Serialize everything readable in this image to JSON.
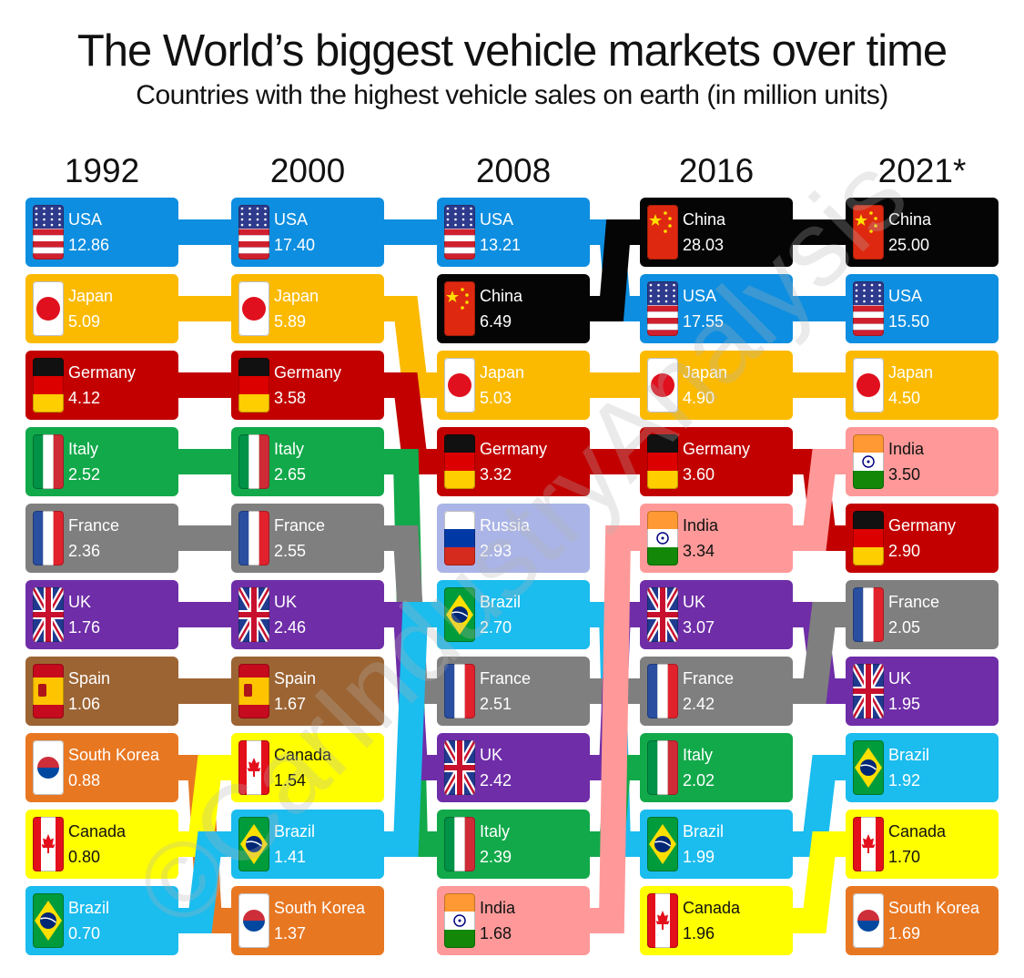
{
  "title": "The World’s biggest vehicle markets over time",
  "subtitle": "Countries with the highest vehicle sales on earth (in million units)",
  "watermark": "©CarIndustryAnalysis",
  "colors": {
    "USA": "#0d8ee0",
    "China": "#050505",
    "Japan": "#fbba00",
    "Germany": "#c20000",
    "Italy": "#12a94a",
    "France": "#7f7f7f",
    "UK": "#6f2da8",
    "Spain": "#9c6433",
    "South Korea": "#e87722",
    "Canada": "#ffff00",
    "Brazil": "#1bbcee",
    "India": "#ff9999",
    "Russia": "#aab4e6"
  },
  "chart_data": {
    "type": "bump",
    "title": "The World’s biggest vehicle markets over time",
    "subtitle": "Countries with the highest vehicle sales on earth (in million units)",
    "years": [
      "1992",
      "2000",
      "2008",
      "2016",
      "2021*"
    ],
    "rankings": [
      [
        {
          "country": "USA",
          "value": "12.86"
        },
        {
          "country": "Japan",
          "value": "5.09"
        },
        {
          "country": "Germany",
          "value": "4.12"
        },
        {
          "country": "Italy",
          "value": "2.52"
        },
        {
          "country": "France",
          "value": "2.36"
        },
        {
          "country": "UK",
          "value": "1.76"
        },
        {
          "country": "Spain",
          "value": "1.06"
        },
        {
          "country": "South Korea",
          "value": "0.88"
        },
        {
          "country": "Canada",
          "value": "0.80"
        },
        {
          "country": "Brazil",
          "value": "0.70"
        }
      ],
      [
        {
          "country": "USA",
          "value": "17.40"
        },
        {
          "country": "Japan",
          "value": "5.89"
        },
        {
          "country": "Germany",
          "value": "3.58"
        },
        {
          "country": "Italy",
          "value": "2.65"
        },
        {
          "country": "France",
          "value": "2.55"
        },
        {
          "country": "UK",
          "value": "2.46"
        },
        {
          "country": "Spain",
          "value": "1.67"
        },
        {
          "country": "Canada",
          "value": "1.54"
        },
        {
          "country": "Brazil",
          "value": "1.41"
        },
        {
          "country": "South Korea",
          "value": "1.37"
        }
      ],
      [
        {
          "country": "USA",
          "value": "13.21"
        },
        {
          "country": "China",
          "value": "6.49"
        },
        {
          "country": "Japan",
          "value": "5.03"
        },
        {
          "country": "Germany",
          "value": "3.32"
        },
        {
          "country": "Russia",
          "value": "2.93"
        },
        {
          "country": "Brazil",
          "value": "2.70"
        },
        {
          "country": "France",
          "value": "2.51"
        },
        {
          "country": "UK",
          "value": "2.42"
        },
        {
          "country": "Italy",
          "value": "2.39"
        },
        {
          "country": "India",
          "value": "1.68"
        }
      ],
      [
        {
          "country": "China",
          "value": "28.03"
        },
        {
          "country": "USA",
          "value": "17.55"
        },
        {
          "country": "Japan",
          "value": "4.90"
        },
        {
          "country": "Germany",
          "value": "3.60"
        },
        {
          "country": "India",
          "value": "3.34"
        },
        {
          "country": "UK",
          "value": "3.07"
        },
        {
          "country": "France",
          "value": "2.42"
        },
        {
          "country": "Italy",
          "value": "2.02"
        },
        {
          "country": "Brazil",
          "value": "1.99"
        },
        {
          "country": "Canada",
          "value": "1.96"
        }
      ],
      [
        {
          "country": "China",
          "value": "25.00"
        },
        {
          "country": "USA",
          "value": "15.50"
        },
        {
          "country": "Japan",
          "value": "4.50"
        },
        {
          "country": "India",
          "value": "3.50"
        },
        {
          "country": "Germany",
          "value": "2.90"
        },
        {
          "country": "France",
          "value": "2.05"
        },
        {
          "country": "UK",
          "value": "1.95"
        },
        {
          "country": "Brazil",
          "value": "1.92"
        },
        {
          "country": "Canada",
          "value": "1.70"
        },
        {
          "country": "South Korea",
          "value": "1.69"
        }
      ]
    ]
  }
}
